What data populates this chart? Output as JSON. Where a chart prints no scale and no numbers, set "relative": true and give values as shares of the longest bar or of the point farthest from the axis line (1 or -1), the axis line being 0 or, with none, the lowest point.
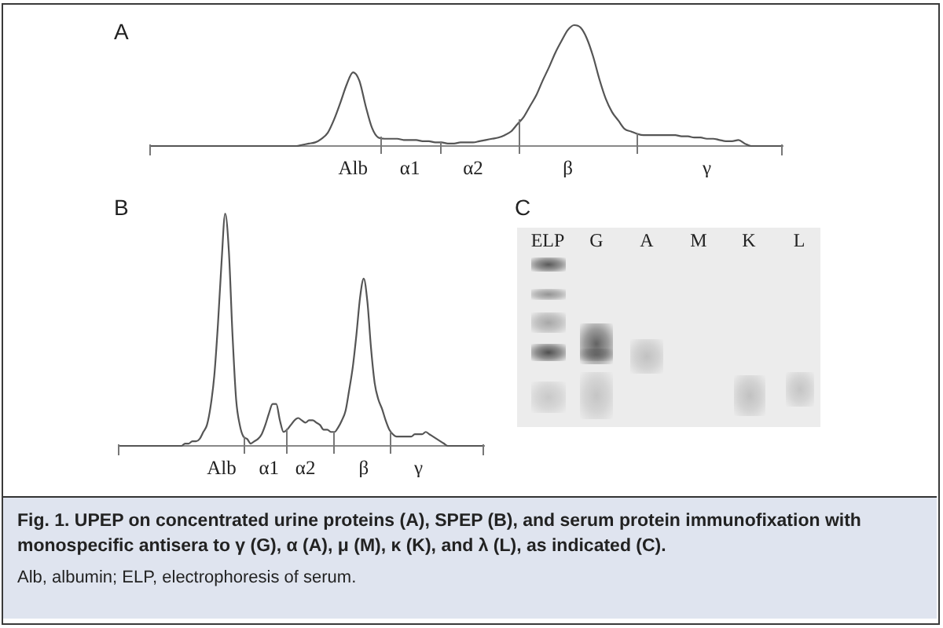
{
  "chart_data": [
    {
      "type": "line",
      "title": "A",
      "relative": true,
      "color": "#555555",
      "marker": "none",
      "categories": [
        null,
        null,
        null,
        null,
        null,
        null,
        null,
        null,
        null,
        null,
        null,
        null,
        null,
        null,
        null,
        null,
        null,
        null,
        null,
        null,
        null,
        null,
        null,
        null,
        null,
        null,
        null,
        null,
        null,
        null,
        null,
        null,
        "Alb",
        null,
        null,
        null,
        null,
        null,
        null,
        null,
        null,
        "α1",
        null,
        null,
        null,
        null,
        null,
        null,
        null,
        null,
        null,
        "α2",
        null,
        null,
        null,
        null,
        null,
        null,
        null,
        null,
        null,
        null,
        null,
        null,
        null,
        null,
        "β",
        null,
        null,
        null,
        null,
        null,
        null,
        null,
        null,
        null,
        null,
        null,
        null,
        null,
        null,
        null,
        null,
        null,
        null,
        null,
        null,
        null,
        "γ",
        null,
        null,
        null,
        null,
        null,
        null,
        null,
        null,
        null,
        null,
        null,
        null
      ],
      "values": [
        0,
        0,
        0,
        0,
        0,
        0,
        0,
        0,
        0,
        0,
        0,
        0,
        0,
        0,
        0,
        0,
        0,
        0,
        0,
        0,
        0,
        0,
        0,
        0,
        0.01,
        0.02,
        0.03,
        0.06,
        0.11,
        0.22,
        0.36,
        0.51,
        0.61,
        0.54,
        0.33,
        0.15,
        0.07,
        0.06,
        0.06,
        0.06,
        0.05,
        0.05,
        0.05,
        0.04,
        0.04,
        0.03,
        0.03,
        0.02,
        0.02,
        0.03,
        0.03,
        0.03,
        0.04,
        0.05,
        0.06,
        0.07,
        0.09,
        0.12,
        0.18,
        0.24,
        0.33,
        0.42,
        0.54,
        0.65,
        0.77,
        0.87,
        0.96,
        1,
        0.98,
        0.89,
        0.74,
        0.55,
        0.39,
        0.28,
        0.21,
        0.14,
        0.12,
        0.1,
        0.09,
        0.09,
        0.09,
        0.09,
        0.09,
        0.09,
        0.08,
        0.08,
        0.07,
        0.07,
        0.06,
        0.06,
        0.05,
        0.04,
        0.04,
        0.05,
        0.02,
        0,
        0,
        0,
        0,
        0,
        0
      ]
    },
    {
      "type": "line",
      "title": "B",
      "relative": true,
      "color": "#555555",
      "marker": "none",
      "categories": [
        null,
        null,
        null,
        null,
        null,
        null,
        null,
        null,
        null,
        null,
        null,
        null,
        null,
        null,
        null,
        null,
        null,
        null,
        null,
        null,
        null,
        null,
        null,
        null,
        null,
        null,
        null,
        null,
        "Alb",
        null,
        null,
        null,
        null,
        null,
        null,
        null,
        null,
        null,
        null,
        null,
        null,
        "α1",
        null,
        null,
        null,
        null,
        null,
        null,
        null,
        null,
        null,
        "α2",
        null,
        null,
        null,
        null,
        null,
        null,
        null,
        null,
        null,
        null,
        null,
        null,
        null,
        null,
        null,
        "β",
        null,
        null,
        null,
        null,
        null,
        null,
        null,
        null,
        null,
        null,
        null,
        null,
        null,
        null,
        "γ",
        null,
        null,
        null,
        null,
        null,
        null,
        null,
        null,
        null,
        null,
        null,
        null,
        null,
        null,
        null,
        null,
        null,
        null
      ],
      "values": [
        0,
        0,
        0,
        0,
        0,
        0,
        0,
        0,
        0,
        0,
        0,
        0,
        0,
        0,
        0,
        0,
        0,
        0,
        0.01,
        0.01,
        0.02,
        0.02,
        0.03,
        0.06,
        0.09,
        0.17,
        0.3,
        0.52,
        0.79,
        1,
        0.84,
        0.48,
        0.2,
        0.09,
        0.04,
        0.03,
        0.01,
        0.02,
        0.03,
        0.05,
        0.09,
        0.14,
        0.18,
        0.18,
        0.11,
        0.06,
        0.07,
        0.09,
        0.11,
        0.12,
        0.11,
        0.1,
        0.11,
        0.11,
        0.1,
        0.09,
        0.07,
        0.07,
        0.06,
        0.06,
        0.08,
        0.11,
        0.15,
        0.24,
        0.34,
        0.48,
        0.64,
        0.72,
        0.62,
        0.42,
        0.27,
        0.2,
        0.16,
        0.11,
        0.07,
        0.05,
        0.04,
        0.04,
        0.04,
        0.04,
        0.04,
        0.05,
        0.05,
        0.05,
        0.06,
        0.05,
        0.04,
        0.03,
        0.02,
        0.01,
        0,
        0,
        0,
        0,
        0,
        0,
        0,
        0,
        0,
        0,
        0
      ]
    },
    {
      "type": "other",
      "title": "C",
      "categories": [
        "ELP",
        "G",
        "A",
        "M",
        "K",
        "L"
      ]
    },
    {
      "type": "other",
      "annotations": [
        "Fig. 1. UPEP on concentrated urine proteins (A), SPEP (B), and serum protein immunofixation with monospecific antisera to γ (G), α (A), μ (M), κ (K), and λ (L), as indicated (C).",
        "Alb, albumin; ELP, electrophoresis of serum."
      ]
    }
  ]
}
